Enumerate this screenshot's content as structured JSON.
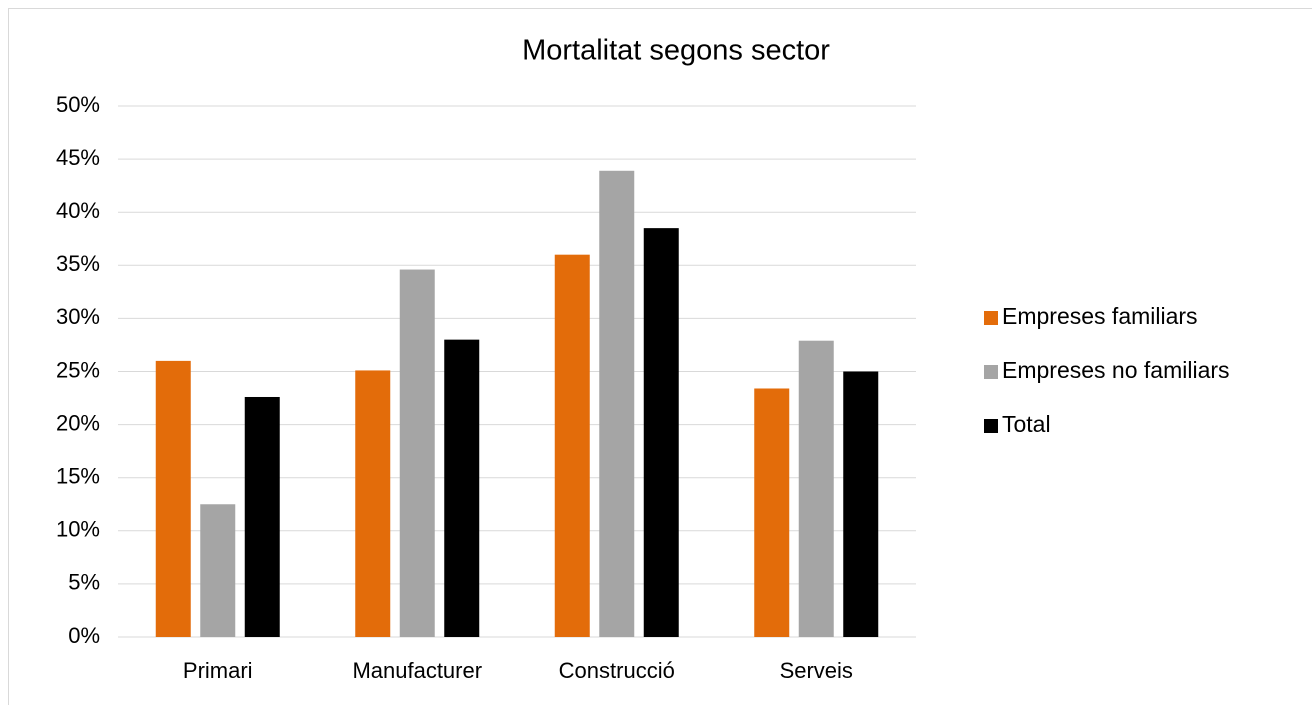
{
  "chart_data": {
    "type": "bar",
    "title": "Mortalitat segons sector",
    "categories": [
      "Primari",
      "Manufacturer",
      "Construcció",
      "Serveis"
    ],
    "series": [
      {
        "name": "Empreses familiars",
        "color": "#e36c0a",
        "values": [
          26.0,
          25.1,
          36.0,
          23.4
        ]
      },
      {
        "name": "Empreses no familiars",
        "color": "#a5a5a5",
        "values": [
          12.5,
          34.6,
          43.9,
          27.9
        ]
      },
      {
        "name": "Total",
        "color": "#000000",
        "values": [
          22.6,
          28.0,
          38.5,
          25.0
        ]
      }
    ],
    "ylim": [
      0,
      50
    ],
    "yticks": [
      {
        "value": 0,
        "label": "0%"
      },
      {
        "value": 5,
        "label": "5%"
      },
      {
        "value": 10,
        "label": "10%"
      },
      {
        "value": 15,
        "label": "15%"
      },
      {
        "value": 20,
        "label": "20%"
      },
      {
        "value": 25,
        "label": "25%"
      },
      {
        "value": 30,
        "label": "30%"
      },
      {
        "value": 35,
        "label": "35%"
      },
      {
        "value": 40,
        "label": "40%"
      },
      {
        "value": 45,
        "label": "45%"
      },
      {
        "value": 50,
        "label": "50%"
      }
    ],
    "grid": true,
    "legend": "right"
  }
}
